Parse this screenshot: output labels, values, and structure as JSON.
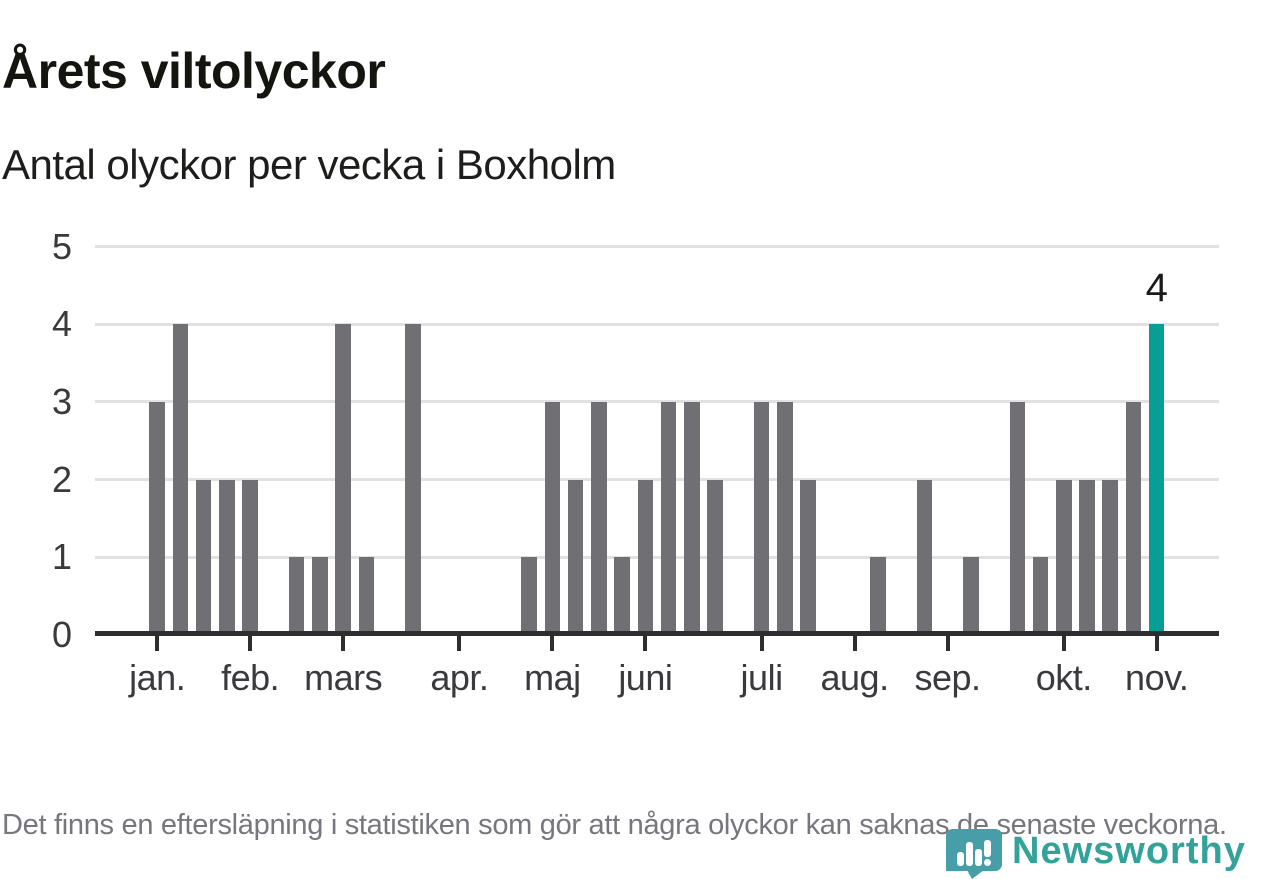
{
  "header": {
    "title": "Årets viltolyckor",
    "subtitle": "Antal olyckor per vecka i Boxholm"
  },
  "chart_data": {
    "type": "bar",
    "title": "Årets viltolyckor",
    "subtitle": "Antal olyckor per vecka i Boxholm",
    "x_unit": "vecka",
    "categories_note": "44 consecutive weeks, January through early November",
    "values": [
      3,
      4,
      2,
      2,
      2,
      0,
      1,
      1,
      4,
      1,
      0,
      4,
      0,
      0,
      0,
      0,
      1,
      3,
      2,
      3,
      1,
      2,
      3,
      3,
      2,
      0,
      3,
      3,
      2,
      0,
      0,
      1,
      0,
      2,
      0,
      1,
      0,
      3,
      1,
      2,
      2,
      2,
      3,
      4
    ],
    "highlight_index": 43,
    "highlight_value_label": "4",
    "months": [
      {
        "label": "jan.",
        "week": 0
      },
      {
        "label": "feb.",
        "week": 4
      },
      {
        "label": "mars",
        "week": 8
      },
      {
        "label": "apr.",
        "week": 13
      },
      {
        "label": "maj",
        "week": 17
      },
      {
        "label": "juni",
        "week": 21
      },
      {
        "label": "juli",
        "week": 26
      },
      {
        "label": "aug.",
        "week": 30
      },
      {
        "label": "sep.",
        "week": 34
      },
      {
        "label": "okt.",
        "week": 39
      },
      {
        "label": "nov.",
        "week": 43
      }
    ],
    "y_ticks": [
      "0",
      "1",
      "2",
      "3",
      "4",
      "5"
    ],
    "ylim": [
      0,
      5
    ],
    "grid": "horizontal",
    "legend": "none",
    "colors": {
      "bar": "#6f6f74",
      "highlight": "#089e96",
      "gridline": "#e1e1e1",
      "axis": "#2e2e2e"
    }
  },
  "footer": {
    "note": "Det finns en eftersläpning i statistiken som gör att några olyckor kan saknas de senaste veckorna."
  },
  "logo": {
    "text": "Newsworthy",
    "color": "#32a29b",
    "pin_color": "#489ea8"
  }
}
